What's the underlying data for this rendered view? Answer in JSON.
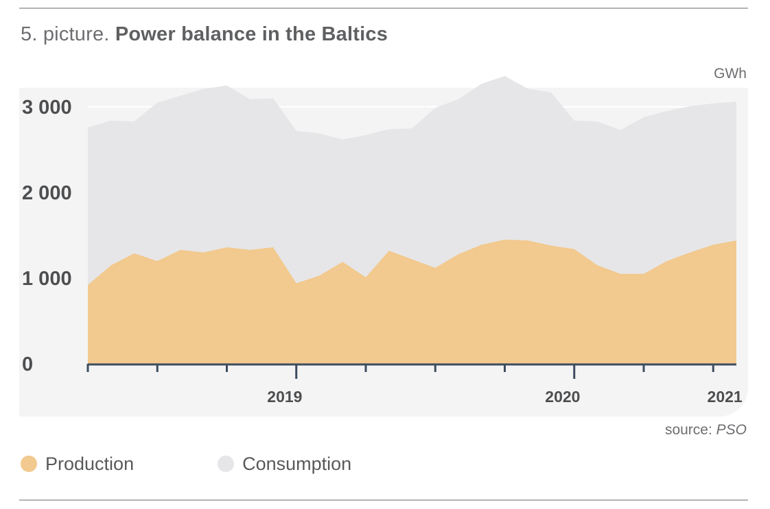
{
  "header": {
    "title_lead": "5. picture. ",
    "title_main": "Power balance in the Baltics",
    "unit": "GWh"
  },
  "footer": {
    "source_prefix": "source: ",
    "source_name": "PSO"
  },
  "legend": {
    "items": [
      {
        "label": "Production",
        "color": "#f2c98e"
      },
      {
        "label": "Consumption",
        "color": "#e6e6e8"
      }
    ]
  },
  "chart_data": {
    "type": "area",
    "title": "Power balance in the Baltics",
    "ylabel": "GWh",
    "ylim": [
      0,
      3000
    ],
    "yticks": [
      0,
      1000,
      2000,
      3000
    ],
    "ytick_labels": [
      "0",
      "1 000",
      "2 000",
      "3 000"
    ],
    "x_tick_labels": [
      "2019",
      "2020",
      "2021"
    ],
    "x_start": "2018-10",
    "x_end": "2021-02",
    "grid": true,
    "legend_position": "bottom-left",
    "series": [
      {
        "name": "Consumption",
        "color": "#e6e6e8",
        "x": [
          "2018-10",
          "2018-11",
          "2018-12",
          "2019-01",
          "2019-02",
          "2019-03",
          "2019-04",
          "2019-05",
          "2019-06",
          "2019-07",
          "2019-08",
          "2019-09",
          "2019-10",
          "2019-11",
          "2019-12",
          "2020-01",
          "2020-02",
          "2020-03",
          "2020-04",
          "2020-05",
          "2020-06",
          "2020-07",
          "2020-08",
          "2020-09",
          "2020-10",
          "2020-11",
          "2020-12",
          "2021-01",
          "2021-02"
        ],
        "values": [
          2760,
          2840,
          2830,
          3050,
          3130,
          3210,
          3250,
          3090,
          3100,
          2720,
          2690,
          2620,
          2670,
          2740,
          2750,
          2990,
          3090,
          3270,
          3360,
          3210,
          3170,
          2840,
          2830,
          2730,
          2880,
          2950,
          3010,
          3040,
          3060
        ]
      },
      {
        "name": "Production",
        "color": "#f2c98e",
        "x": [
          "2018-10",
          "2018-11",
          "2018-12",
          "2019-01",
          "2019-02",
          "2019-03",
          "2019-04",
          "2019-05",
          "2019-06",
          "2019-07",
          "2019-08",
          "2019-09",
          "2019-10",
          "2019-11",
          "2019-12",
          "2020-01",
          "2020-02",
          "2020-03",
          "2020-04",
          "2020-05",
          "2020-06",
          "2020-07",
          "2020-08",
          "2020-09",
          "2020-10",
          "2020-11",
          "2020-12",
          "2021-01",
          "2021-02"
        ],
        "values": [
          920,
          1150,
          1290,
          1200,
          1330,
          1300,
          1360,
          1330,
          1360,
          940,
          1030,
          1190,
          1010,
          1320,
          1220,
          1120,
          1280,
          1390,
          1450,
          1440,
          1380,
          1340,
          1150,
          1050,
          1050,
          1200,
          1300,
          1390,
          1440
        ]
      }
    ]
  }
}
